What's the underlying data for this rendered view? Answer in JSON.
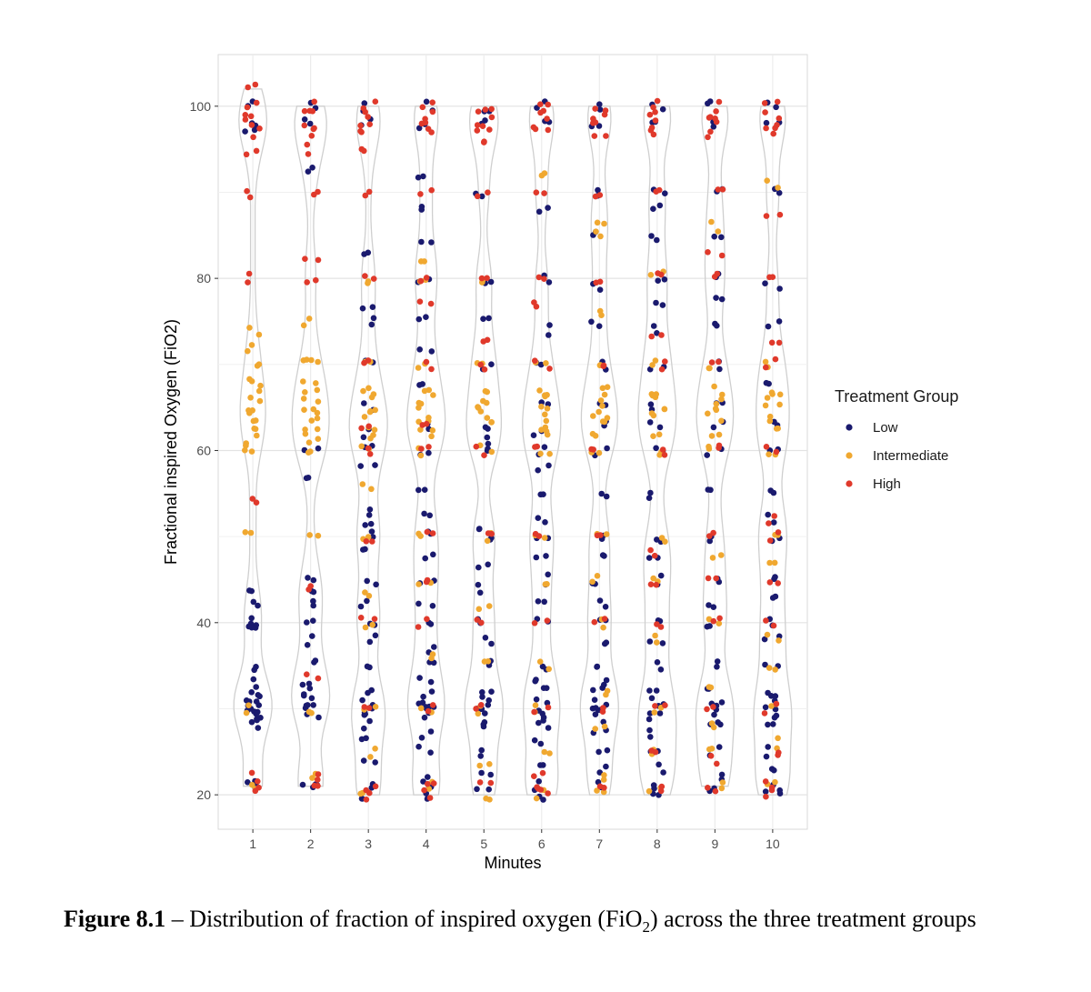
{
  "chart_data": {
    "type": "scatter",
    "subtype": "jittered strip plot over violin outlines",
    "xlabel": "Minutes",
    "ylabel": "Fractional inspired Oxygen (FiO2)",
    "categories": [
      "1",
      "2",
      "3",
      "4",
      "5",
      "6",
      "7",
      "8",
      "9",
      "10"
    ],
    "yticks": [
      "20",
      "40",
      "60",
      "80",
      "100"
    ],
    "ylim": [
      16,
      106
    ],
    "grid": true,
    "legend": {
      "title": "Treatment Group",
      "placement": "right",
      "entries": [
        {
          "name": "Low",
          "color": "#1a1a6e"
        },
        {
          "name": "Intermediate",
          "color": "#f0a830"
        },
        {
          "name": "High",
          "color": "#e0392b"
        }
      ]
    },
    "series": [
      {
        "name": "Low",
        "color": "#1a1a6e",
        "value_distribution_by_minute": [
          {
            "x": "1",
            "values": [
              21,
              21,
              29,
              30,
              30,
              31,
              31,
              32,
              30,
              29,
              28,
              33,
              35,
              40,
              40,
              40,
              44,
              42,
              97,
              98,
              100
            ]
          },
          {
            "x": "2",
            "values": [
              21,
              21,
              29,
              30,
              31,
              32,
              30,
              33,
              35,
              38,
              40,
              42,
              44,
              45,
              57,
              60,
              100,
              98,
              93
            ]
          },
          {
            "x": "3",
            "values": [
              20,
              21,
              24,
              26,
              28,
              29,
              30,
              30,
              31,
              32,
              35,
              38,
              40,
              42,
              45,
              48,
              50,
              51,
              53,
              58,
              60,
              62,
              65,
              70,
              75,
              77,
              83,
              98,
              100
            ]
          },
          {
            "x": "4",
            "values": [
              20,
              21,
              22,
              25,
              27,
              29,
              30,
              30,
              31,
              32,
              33,
              35,
              37,
              40,
              42,
              45,
              48,
              50,
              53,
              55,
              60,
              63,
              68,
              72,
              75,
              80,
              84,
              88,
              92,
              98,
              100
            ]
          },
          {
            "x": "5",
            "values": [
              21,
              22,
              25,
              28,
              29,
              30,
              30,
              31,
              32,
              35,
              38,
              40,
              44,
              47,
              50,
              51,
              60,
              61,
              63,
              70,
              75,
              80,
              90,
              98,
              100
            ]
          },
          {
            "x": "6",
            "values": [
              20,
              21,
              23,
              26,
              28,
              29,
              30,
              31,
              32,
              33,
              35,
              40,
              42,
              45,
              48,
              50,
              52,
              55,
              58,
              60,
              62,
              65,
              70,
              74,
              80,
              88,
              98,
              100
            ]
          },
          {
            "x": "7",
            "values": [
              21,
              23,
              25,
              27,
              29,
              30,
              30,
              31,
              32,
              33,
              35,
              38,
              40,
              42,
              45,
              48,
              50,
              55,
              60,
              63,
              65,
              70,
              75,
              79,
              85,
              90,
              98,
              100
            ]
          },
          {
            "x": "8",
            "values": [
              20,
              21,
              23,
              25,
              27,
              29,
              30,
              31,
              32,
              35,
              38,
              40,
              45,
              48,
              50,
              55,
              60,
              63,
              65,
              70,
              74,
              77,
              80,
              85,
              88,
              90,
              98,
              100
            ]
          },
          {
            "x": "9",
            "values": [
              21,
              22,
              25,
              28,
              29,
              30,
              31,
              32,
              35,
              40,
              42,
              45,
              50,
              55,
              60,
              63,
              65,
              70,
              75,
              78,
              80,
              85,
              90,
              98,
              100
            ]
          },
          {
            "x": "10",
            "values": [
              20,
              21,
              23,
              25,
              28,
              29,
              30,
              31,
              32,
              35,
              38,
              40,
              43,
              45,
              50,
              52,
              55,
              60,
              63,
              68,
              75,
              79,
              90,
              98,
              100
            ]
          }
        ]
      },
      {
        "name": "Intermediate",
        "color": "#f0a830",
        "value_distribution_by_minute": [
          {
            "x": "1",
            "values": [
              21,
              30,
              50,
              60,
              61,
              62,
              63,
              64,
              65,
              66,
              67,
              68,
              70,
              72,
              74
            ]
          },
          {
            "x": "2",
            "values": [
              22,
              30,
              50,
              60,
              61,
              62,
              63,
              64,
              65,
              66,
              67,
              68,
              70,
              71,
              75
            ]
          },
          {
            "x": "3",
            "values": [
              20,
              25,
              30,
              40,
              43,
              50,
              56,
              60,
              62,
              63,
              64,
              65,
              66,
              67,
              70,
              80
            ]
          },
          {
            "x": "4",
            "values": [
              21,
              30,
              36,
              45,
              50,
              60,
              62,
              63,
              64,
              65,
              66,
              67,
              70,
              80,
              82
            ]
          },
          {
            "x": "5",
            "values": [
              20,
              23,
              30,
              35,
              42,
              50,
              60,
              63,
              64,
              65,
              66,
              67,
              70,
              80
            ]
          },
          {
            "x": "6",
            "values": [
              20,
              25,
              30,
              35,
              45,
              50,
              60,
              62,
              63,
              64,
              65,
              66,
              67,
              70,
              92
            ]
          },
          {
            "x": "7",
            "values": [
              20,
              22,
              28,
              32,
              40,
              45,
              50,
              60,
              62,
              63,
              64,
              65,
              66,
              67,
              70,
              76,
              85,
              86
            ]
          },
          {
            "x": "8",
            "values": [
              21,
              25,
              30,
              38,
              45,
              50,
              60,
              62,
              64,
              65,
              66,
              67,
              70,
              81
            ]
          },
          {
            "x": "9",
            "values": [
              21,
              25,
              28,
              33,
              40,
              48,
              60,
              62,
              64,
              65,
              66,
              67,
              70,
              86
            ]
          },
          {
            "x": "10",
            "values": [
              21,
              26,
              30,
              35,
              38,
              47,
              50,
              60,
              62,
              64,
              65,
              66,
              67,
              70,
              91
            ]
          }
        ]
      },
      {
        "name": "High",
        "color": "#e0392b",
        "value_distribution_by_minute": [
          {
            "x": "1",
            "values": [
              21,
              22,
              54,
              80,
              90,
              95,
              97,
              98,
              99,
              100,
              102
            ]
          },
          {
            "x": "2",
            "values": [
              21,
              22,
              34,
              44,
              80,
              82,
              90,
              95,
              97,
              98,
              99,
              100
            ]
          },
          {
            "x": "3",
            "values": [
              20,
              21,
              30,
              40,
              50,
              60,
              63,
              70,
              80,
              90,
              95,
              97,
              98,
              99,
              100
            ]
          },
          {
            "x": "4",
            "values": [
              20,
              21,
              30,
              40,
              45,
              50,
              60,
              63,
              70,
              77,
              80,
              90,
              97,
              98,
              99,
              100
            ]
          },
          {
            "x": "5",
            "values": [
              21,
              30,
              40,
              50,
              60,
              70,
              73,
              80,
              90,
              96,
              97,
              98,
              99,
              100
            ]
          },
          {
            "x": "6",
            "values": [
              20,
              21,
              22,
              30,
              40,
              50,
              60,
              70,
              77,
              80,
              90,
              97,
              98,
              99,
              100
            ]
          },
          {
            "x": "7",
            "values": [
              21,
              30,
              40,
              50,
              60,
              70,
              80,
              90,
              97,
              98,
              99,
              100
            ]
          },
          {
            "x": "8",
            "values": [
              21,
              25,
              30,
              40,
              44,
              48,
              60,
              70,
              73,
              80,
              90,
              97,
              98,
              99,
              100
            ]
          },
          {
            "x": "9",
            "values": [
              21,
              24,
              30,
              40,
              45,
              50,
              60,
              70,
              83,
              80,
              90,
              97,
              98,
              99,
              100
            ]
          },
          {
            "x": "10",
            "values": [
              20,
              21,
              25,
              30,
              40,
              45,
              50,
              52,
              60,
              70,
              72,
              80,
              87,
              97,
              98,
              99,
              100
            ]
          }
        ]
      }
    ]
  },
  "caption": {
    "label": "Figure 8.1",
    "text_before_sub": " – Distribution of fraction of inspired oxygen (FiO",
    "sub": "2",
    "text_after_sub": ") across the three treatment groups"
  }
}
